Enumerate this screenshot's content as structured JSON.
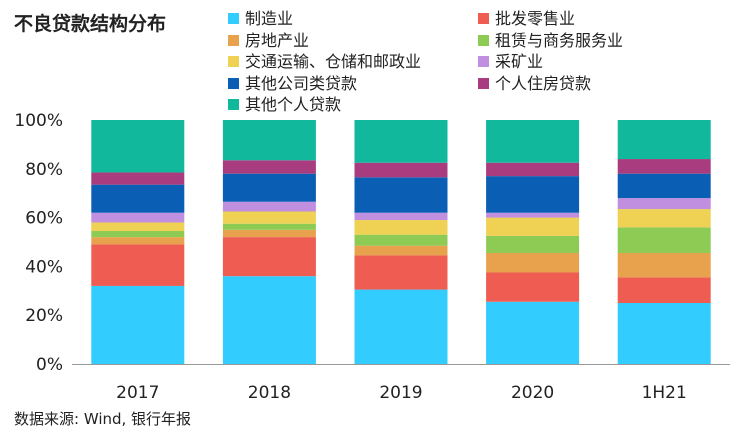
{
  "title": "不良贷款结构分布",
  "source": "数据来源: Wind, 银行年报",
  "chart_data": {
    "type": "bar",
    "stacked": true,
    "categories": [
      "2017",
      "2018",
      "2019",
      "2020",
      "1H21"
    ],
    "ylim": [
      0,
      100
    ],
    "yticks": [
      "0%",
      "20%",
      "40%",
      "60%",
      "80%",
      "100%"
    ],
    "legend_placement": "top-right",
    "series": [
      {
        "name": "制造业",
        "color": "#33CCFF",
        "values": [
          32,
          36,
          30.5,
          25.5,
          25
        ]
      },
      {
        "name": "批发零售业",
        "color": "#EE5C52",
        "values": [
          17,
          16,
          14,
          12,
          10.5
        ]
      },
      {
        "name": "房地产业",
        "color": "#E8A24E",
        "values": [
          3,
          3,
          4,
          8,
          10
        ]
      },
      {
        "name": "租赁与商务服务业",
        "color": "#8DCB55",
        "values": [
          2.5,
          2.5,
          4.5,
          7,
          10.5
        ]
      },
      {
        "name": "交通运输、仓储和邮政业",
        "color": "#EFD154",
        "values": [
          3.5,
          5,
          6,
          7.5,
          7.5
        ]
      },
      {
        "name": "采矿业",
        "color": "#C08FE0",
        "values": [
          4,
          4,
          3,
          2,
          4.5
        ]
      },
      {
        "name": "其他公司类贷款",
        "color": "#0A5FB4",
        "values": [
          11.5,
          11.5,
          14.5,
          15,
          10
        ]
      },
      {
        "name": "个人住房贷款",
        "color": "#A93C7E",
        "values": [
          5,
          5.5,
          6,
          5.5,
          6
        ]
      },
      {
        "name": "其他个人贷款",
        "color": "#11B89B",
        "values": [
          21.5,
          16.5,
          17.5,
          17.5,
          16
        ]
      }
    ]
  }
}
